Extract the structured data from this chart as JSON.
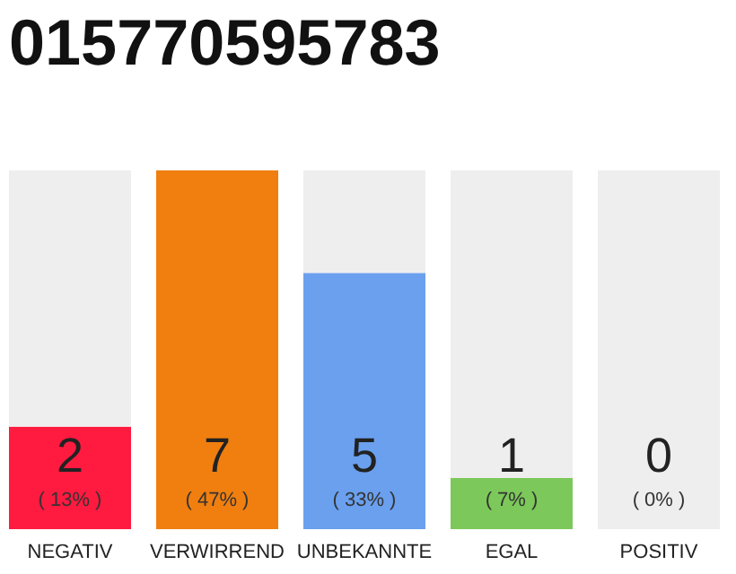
{
  "chart_data": {
    "type": "bar",
    "title": "015770595783",
    "categories": [
      "NEGATIV",
      "VERWIRREND",
      "UNBEKANNTE",
      "EGAL",
      "POSITIV"
    ],
    "stacked": true,
    "series": [
      {
        "colors": [
          "#ff1a40",
          "#f07f0f",
          "#6aa0ee",
          "#7cc85a",
          "#c8c8c8"
        ],
        "values": [
          2,
          7,
          5,
          1,
          0
        ],
        "value_labels": [
          "2",
          "7",
          "5",
          "1",
          null
        ]
      },
      {
        "color": "#eeeeee",
        "values": [
          5,
          0,
          2,
          6,
          7
        ]
      }
    ],
    "ylim": [
      0,
      7
    ],
    "annotations": [
      "( 13% )",
      "( 47% )",
      "( 33% )",
      "( 7% )",
      "( 0% )",
      "0"
    ]
  }
}
